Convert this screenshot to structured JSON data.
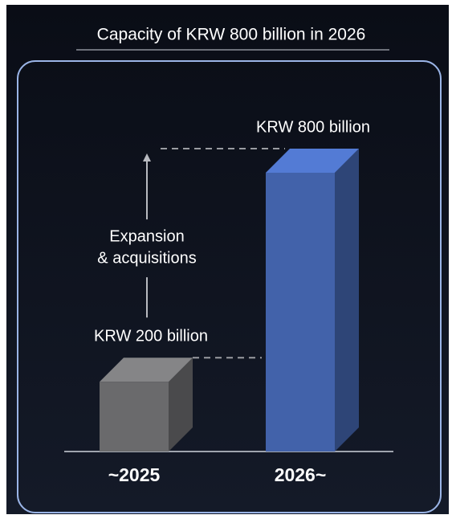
{
  "chart_data": {
    "type": "bar3d",
    "title": "Capacity of KRW 800 billion in 2026",
    "categories": [
      "~2025",
      "2026~"
    ],
    "values": [
      200,
      800
    ],
    "value_labels": [
      "KRW 200 billion",
      "KRW 800 billion"
    ],
    "colors": [
      "#6a6a6c",
      "#4262aa"
    ],
    "annotation": [
      "Expansion",
      "& acquisitions"
    ]
  }
}
